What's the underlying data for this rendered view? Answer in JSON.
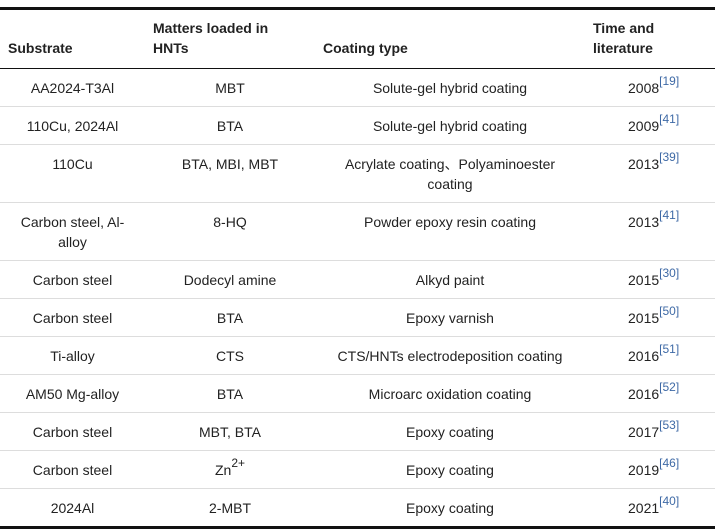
{
  "table": {
    "header": [
      "Substrate",
      "Matters loaded in HNTs",
      "Coating type",
      "Time and literature"
    ],
    "rows": [
      {
        "substrate": "AA2024-T3Al",
        "matters": "MBT",
        "coating": "Solute-gel hybrid coating",
        "year": "2008",
        "ref": "[19]"
      },
      {
        "substrate": "110Cu, 2024Al",
        "matters": "BTA",
        "coating": "Solute-gel hybrid coating",
        "year": "2009",
        "ref": "[41]"
      },
      {
        "substrate": "110Cu",
        "matters": "BTA, MBI, MBT",
        "coating": "Acrylate coating、Polyaminoester coating",
        "year": "2013",
        "ref": "[39]"
      },
      {
        "substrate": "Carbon steel, Al-alloy",
        "matters": "8-HQ",
        "coating": "Powder epoxy resin coating",
        "year": "2013",
        "ref": "[41]"
      },
      {
        "substrate": "Carbon steel",
        "matters": "Dodecyl amine",
        "coating": "Alkyd paint",
        "year": "2015",
        "ref": "[30]"
      },
      {
        "substrate": "Carbon steel",
        "matters": "BTA",
        "coating": "Epoxy varnish",
        "year": "2015",
        "ref": "[50]"
      },
      {
        "substrate": "Ti-alloy",
        "matters": "CTS",
        "coating": "CTS/HNTs electrodeposition coating",
        "year": "2016",
        "ref": "[51]"
      },
      {
        "substrate": "AM50 Mg-alloy",
        "matters": "BTA",
        "coating": "Microarc oxidation coating",
        "year": "2016",
        "ref": "[52]"
      },
      {
        "substrate": "Carbon steel",
        "matters": "MBT, BTA",
        "coating": "Epoxy coating",
        "year": "2017",
        "ref": "[53]"
      },
      {
        "substrate": "Carbon steel",
        "matters": "Zn",
        "matters_sup": "2+",
        "coating": "Epoxy coating",
        "year": "2019",
        "ref": "[46]"
      },
      {
        "substrate": "2024Al",
        "matters": "2-MBT",
        "coating": "Epoxy coating",
        "year": "2021",
        "ref": "[40]"
      }
    ]
  }
}
